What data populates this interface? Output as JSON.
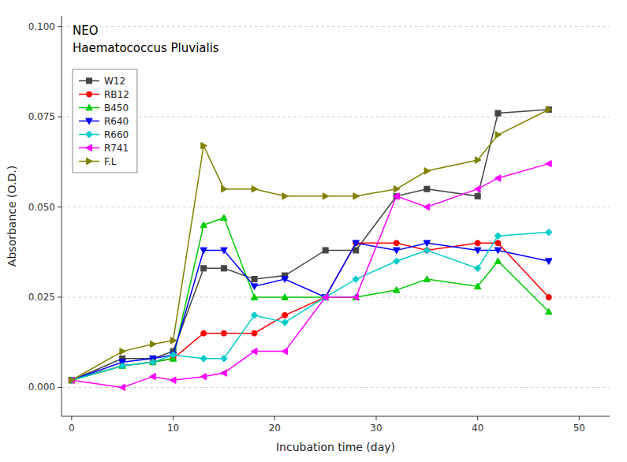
{
  "chart_data": {
    "type": "line",
    "annotations": [
      "NEO",
      "Haematococcus Pluvialis"
    ],
    "x_label": "Incubation time (day)",
    "y_label": "Absorbance (O.D.)",
    "x": [
      0,
      5,
      8,
      10,
      13,
      15,
      18,
      21,
      25,
      28,
      32,
      35,
      40,
      42,
      47
    ],
    "xlim": [
      -1,
      53
    ],
    "ylim": [
      -0.008,
      0.103
    ],
    "xticks": [
      0,
      10,
      20,
      30,
      40,
      50
    ],
    "yticks": [
      {
        "value": 0.0,
        "label": "0.000"
      },
      0.025,
      {
        "value": 0.05,
        "label": "0.050"
      },
      0.075,
      {
        "value": 0.1,
        "label": "0.100"
      }
    ],
    "grid": true,
    "legend": "upper-left",
    "series": [
      {
        "name": "W12",
        "color": "#444444",
        "marker": "square",
        "values": [
          0.002,
          0.008,
          0.008,
          0.01,
          0.033,
          0.033,
          0.03,
          0.031,
          0.038,
          0.038,
          0.053,
          0.055,
          0.053,
          0.076,
          0.077
        ]
      },
      {
        "name": "RB12",
        "color": "#ff0000",
        "marker": "circle",
        "values": [
          0.002,
          0.006,
          0.007,
          0.008,
          0.015,
          0.015,
          0.015,
          0.02,
          0.025,
          0.04,
          0.04,
          0.038,
          0.04,
          0.04,
          0.025
        ]
      },
      {
        "name": "B450",
        "color": "#00cc00",
        "marker": "triangle-up",
        "values": [
          0.002,
          0.006,
          0.007,
          0.008,
          0.045,
          0.047,
          0.025,
          0.025,
          0.025,
          0.025,
          0.027,
          0.03,
          0.028,
          0.035,
          0.021
        ]
      },
      {
        "name": "R640",
        "color": "#0000ff",
        "marker": "triangle-down",
        "values": [
          0.002,
          0.007,
          0.008,
          0.009,
          0.038,
          0.038,
          0.028,
          0.03,
          0.025,
          0.04,
          0.038,
          0.04,
          0.038,
          0.038,
          0.035
        ]
      },
      {
        "name": "R660",
        "color": "#00cccc",
        "marker": "diamond",
        "values": [
          0.002,
          0.006,
          0.007,
          0.009,
          0.008,
          0.008,
          0.02,
          0.018,
          0.025,
          0.03,
          0.035,
          0.038,
          0.033,
          0.042,
          0.043
        ]
      },
      {
        "name": "R741",
        "color": "#ff00ff",
        "marker": "triangle-left",
        "values": [
          0.002,
          0.0,
          0.003,
          0.002,
          0.003,
          0.004,
          0.01,
          0.01,
          0.025,
          0.025,
          0.053,
          0.05,
          0.055,
          0.058,
          0.062
        ]
      },
      {
        "name": "F.L",
        "color": "#808000",
        "marker": "triangle-right",
        "values": [
          0.002,
          0.01,
          0.012,
          0.013,
          0.067,
          0.055,
          0.055,
          0.053,
          0.053,
          0.053,
          0.055,
          0.06,
          0.063,
          0.07,
          0.077
        ]
      }
    ]
  }
}
